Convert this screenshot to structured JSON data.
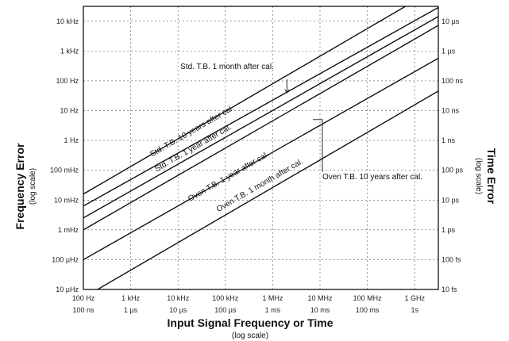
{
  "chart_data": {
    "type": "line",
    "title": "",
    "xlabel": "Input Signal Frequency or Time",
    "xlabel_sub": "(log scale)",
    "ylabel": "Frequency Error",
    "ylabel_sub": "(log scale)",
    "y2label": "Time Error",
    "y2label_sub": "(log scale)",
    "x_scale": "log",
    "y_scale": "log",
    "grid": true,
    "legend": "none",
    "x_ticks": [
      {
        "freq": "100 Hz",
        "time": "100 ns"
      },
      {
        "freq": "1 kHz",
        "time": "1 µs"
      },
      {
        "freq": "10 kHz",
        "time": "10 µs"
      },
      {
        "freq": "100 kHz",
        "time": "100 µs"
      },
      {
        "freq": "1 MHz",
        "time": "1 ms"
      },
      {
        "freq": "10 MHz",
        "time": "10 ms"
      },
      {
        "freq": "100 MHz",
        "time": "100 ms"
      },
      {
        "freq": "1 GHz",
        "time": "1s"
      }
    ],
    "y_ticks_left": [
      "10 kHz",
      "1 kHz",
      "100 Hz",
      "10 Hz",
      "1 Hz",
      "100 mHz",
      "10 mHz",
      "1 mHz",
      "100 µHz",
      "10 µHz"
    ],
    "y_ticks_right": [
      "10 µs",
      "1 µs",
      "100 ns",
      "10 ns",
      "1 ns",
      "100 ps",
      "10 ps",
      "1 ps",
      "100 fs",
      "10 fs"
    ],
    "x_decades_log10": [
      2,
      3,
      4,
      5,
      6,
      7,
      8,
      9
    ],
    "y_decades_log10": [
      4,
      3,
      2,
      1,
      0,
      -1,
      -2,
      -3,
      -4,
      -5
    ],
    "xlim_log10": [
      2,
      9.5
    ],
    "ylim_log10": [
      -5,
      4.5
    ],
    "series": [
      {
        "id": "std-10y",
        "label": "Std. T.B. 10 years after cal.",
        "x_log10": [
          2,
          9.4
        ],
        "y_log10": [
          -1.8,
          5.05
        ]
      },
      {
        "id": "std-1y",
        "label": "Std. T.B. 1 year after cal.",
        "x_log10": [
          2,
          9.6
        ],
        "y_log10": [
          -2.2,
          4.55
        ]
      },
      {
        "id": "std-1m",
        "label": "Std. T.B. 1 month after cal.",
        "x_log10": [
          2,
          9.6
        ],
        "y_log10": [
          -2.6,
          4.25
        ]
      },
      {
        "id": "oven-10y",
        "label": "Oven T.B. 10 years after cal.",
        "x_log10": [
          2,
          9.6
        ],
        "y_log10": [
          -3.0,
          3.95
        ]
      },
      {
        "id": "oven-1y",
        "label": "Oven T.B. 1 year after cal.",
        "x_log10": [
          2,
          9.6
        ],
        "y_log10": [
          -4.0,
          2.85
        ]
      },
      {
        "id": "oven-1m",
        "label": "Oven T.B. 1 month after cal.",
        "x_log10": [
          2.3,
          9.6
        ],
        "y_log10": [
          -5.0,
          1.75
        ]
      }
    ],
    "annotations": [
      {
        "text": "Std. T.B. 1 month after cal.",
        "x_log10": 4.05,
        "y_log10": 2.4,
        "angle": 0
      },
      {
        "text": "Std. T.B. 10 years after cal.",
        "x_log10": 3.45,
        "y_log10": -0.55,
        "angle": -30
      },
      {
        "text": "Std. T.B. 1 year after cal.",
        "x_log10": 3.55,
        "y_log10": -1.05,
        "angle": -30
      },
      {
        "text": "Oven T.B. 1 year after cal.",
        "x_log10": 4.25,
        "y_log10": -2.05,
        "angle": -30
      },
      {
        "text": "Oven T.B. 1 month after cal.",
        "x_log10": 4.85,
        "y_log10": -2.4,
        "angle": -30
      },
      {
        "text": "Oven T.B. 10 years after cal.",
        "x_log10": 7.05,
        "y_log10": -1.3,
        "angle": 0
      }
    ]
  }
}
